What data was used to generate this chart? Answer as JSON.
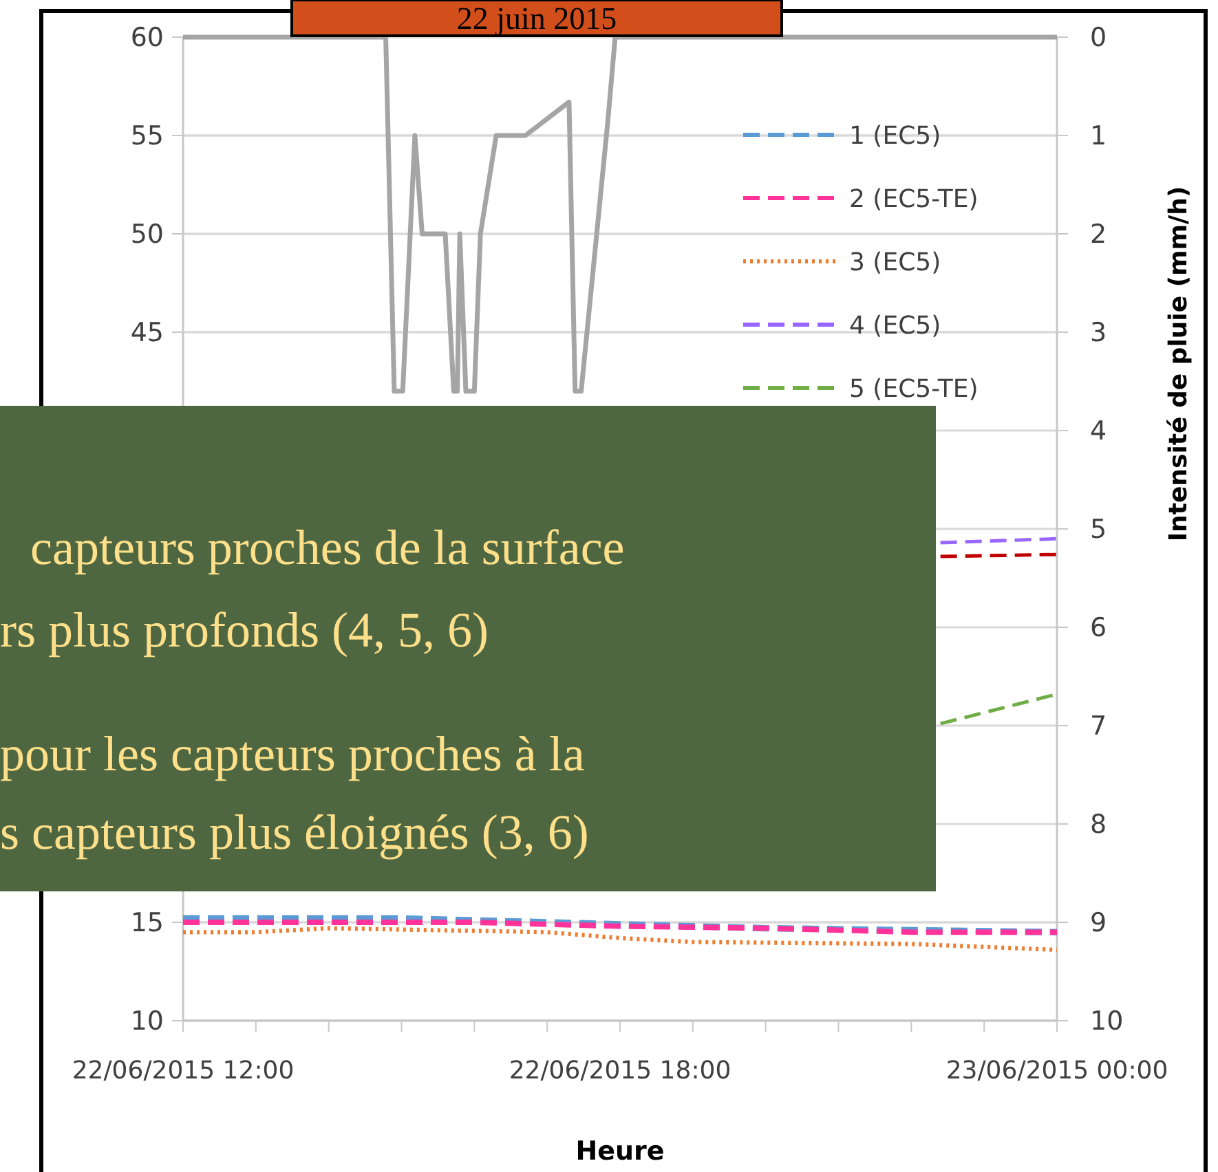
{
  "chart_data": {
    "type": "line",
    "title": "22 juin 2015",
    "xlabel": "Heure",
    "y2label": "Intensité de pluie (mm/h)",
    "xlim": [
      "2015-06-22T12:00",
      "2015-06-23T00:00"
    ],
    "xticks": [
      {
        "value": "2015-06-22T12:00",
        "label": "22/06/2015 12:00"
      },
      {
        "value": "2015-06-22T13:00",
        "label": null
      },
      {
        "value": "2015-06-22T14:00",
        "label": null
      },
      {
        "value": "2015-06-22T15:00",
        "label": null
      },
      {
        "value": "2015-06-22T16:00",
        "label": null
      },
      {
        "value": "2015-06-22T17:00",
        "label": null
      },
      {
        "value": "2015-06-22T18:00",
        "label": "22/06/2015 18:00"
      },
      {
        "value": "2015-06-22T19:00",
        "label": null
      },
      {
        "value": "2015-06-22T20:00",
        "label": null
      },
      {
        "value": "2015-06-22T21:00",
        "label": null
      },
      {
        "value": "2015-06-22T22:00",
        "label": null
      },
      {
        "value": "2015-06-22T23:00",
        "label": null
      },
      {
        "value": "2015-06-23T00:00",
        "label": "23/06/2015 00:00"
      }
    ],
    "ylim": [
      10,
      60
    ],
    "yticks": [
      10,
      15,
      45,
      50,
      55,
      60
    ],
    "y2lim": [
      10,
      0
    ],
    "y2ticks": [
      0,
      1,
      2,
      3,
      4,
      5,
      6,
      7,
      8,
      9,
      10
    ],
    "grid": "y",
    "legend": "top right",
    "series": [
      {
        "color": "#a5a5a5",
        "axis": "y2",
        "line_style": "solid",
        "x": [
          "2015-06-22T12:00",
          "2015-06-22T14:47",
          "2015-06-22T14:54",
          "2015-06-22T15:01",
          "2015-06-22T15:11",
          "2015-06-22T15:17",
          "2015-06-22T15:36",
          "2015-06-22T15:43",
          "2015-06-22T15:46",
          "2015-06-22T15:48",
          "2015-06-22T15:53",
          "2015-06-22T16:00",
          "2015-06-22T16:05",
          "2015-06-22T16:18",
          "2015-06-22T16:42",
          "2015-06-22T17:18",
          "2015-06-22T17:23",
          "2015-06-22T17:28",
          "2015-06-22T17:50",
          "2015-06-22T17:56",
          "2015-06-23T00:00"
        ],
        "values": [
          0,
          0,
          3.6,
          3.6,
          1,
          2,
          2,
          3.6,
          3.6,
          2,
          3.6,
          3.6,
          2,
          1,
          1,
          0.66,
          3.6,
          3.6,
          0.85,
          0,
          0
        ]
      },
      {
        "name": "1 (EC5)",
        "color": "#5b9bd5",
        "line_style": "dashed",
        "x": [
          "2015-06-22T12:00",
          "2015-06-22T15:00",
          "2015-06-22T17:00",
          "2015-06-22T18:00",
          "2015-06-22T20:00",
          "2015-06-22T22:00",
          "2015-06-23T00:00"
        ],
        "values": [
          15.2,
          15.2,
          15.0,
          14.9,
          14.7,
          14.6,
          14.5
        ]
      },
      {
        "name": "2 (EC5-TE)",
        "color": "#ff3399",
        "line_style": "dashed",
        "x": [
          "2015-06-22T12:00",
          "2015-06-22T16:00",
          "2015-06-22T18:00",
          "2015-06-22T20:00",
          "2015-06-22T22:00",
          "2015-06-23T00:00"
        ],
        "values": [
          15.0,
          15.0,
          14.8,
          14.7,
          14.5,
          14.5
        ]
      },
      {
        "name": "3 (EC5)",
        "color": "#ed7d31",
        "line_style": "dotted",
        "x": [
          "2015-06-22T12:00",
          "2015-06-22T13:00",
          "2015-06-22T14:00",
          "2015-06-22T17:00",
          "2015-06-22T18:00",
          "2015-06-22T19:00",
          "2015-06-22T22:00",
          "2015-06-23T00:00"
        ],
        "values": [
          14.5,
          14.5,
          14.7,
          14.5,
          14.2,
          14.0,
          13.9,
          13.6
        ]
      },
      {
        "name": "4 (EC5)",
        "color": "#9966ff",
        "line_style": "dashed",
        "x": [
          "2015-06-22T22:24",
          "2015-06-23T00:00"
        ],
        "values": [
          34.3,
          34.5
        ]
      },
      {
        "name": "5 (EC5-TE)",
        "color": "#70ad47",
        "line_style": "dashed",
        "x": [
          "2015-06-22T22:24",
          "2015-06-23T00:00"
        ],
        "values": [
          25.1,
          26.6
        ]
      },
      {
        "color": "#c00000",
        "line_style": "dashed",
        "x": [
          "2015-06-22T22:24",
          "2015-06-23T00:00"
        ],
        "values": [
          33.6,
          33.7
        ]
      }
    ],
    "annotations": [
      "capteurs proches de la surface",
      "rs plus profonds (4, 5, 6)",
      "pour les capteurs proches à la",
      "s capteurs plus éloignés (3, 6)"
    ]
  }
}
